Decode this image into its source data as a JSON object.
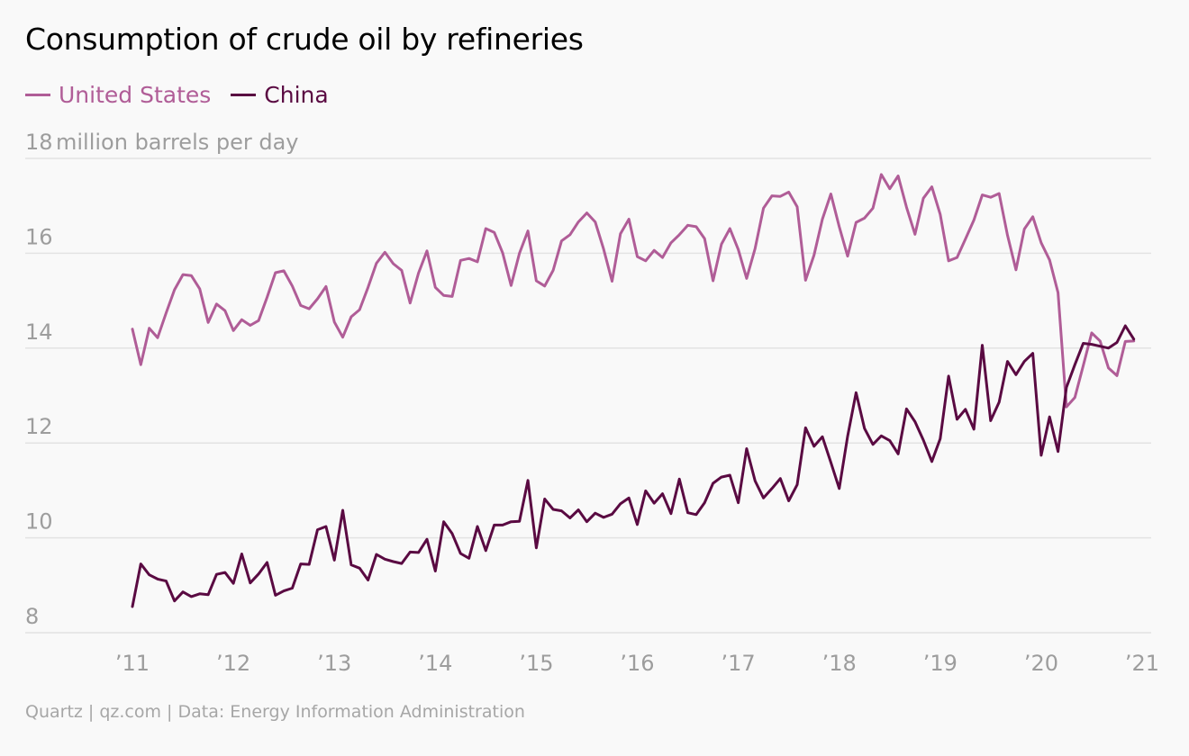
{
  "chart_data": {
    "type": "line",
    "title": "Consumption of crude oil by refineries",
    "ylabel": "million barrels per day",
    "ylim": [
      8,
      18
    ],
    "xlim": [
      2011,
      2021
    ],
    "yticks": [
      8,
      10,
      12,
      14,
      16,
      18
    ],
    "ytick_labels": [
      "8",
      "10",
      "12",
      "14",
      "16",
      "18"
    ],
    "xticks": [
      2011,
      2012,
      2013,
      2014,
      2015,
      2016,
      2017,
      2018,
      2019,
      2020,
      2021
    ],
    "xtick_labels": [
      "’11",
      "’12",
      "’13",
      "’14",
      "’15",
      "’16",
      "’17",
      "’18",
      "’19",
      "’20",
      "’21"
    ],
    "grid": true,
    "legend_position": "top-left",
    "series": [
      {
        "name": "United States",
        "color": "#b05d97",
        "values": [
          14.4,
          13.65,
          14.42,
          14.22,
          14.74,
          15.23,
          15.55,
          15.53,
          15.25,
          14.54,
          14.93,
          14.79,
          14.37,
          14.6,
          14.48,
          14.58,
          15.07,
          15.59,
          15.63,
          15.31,
          14.9,
          14.83,
          15.04,
          15.3,
          14.55,
          14.23,
          14.66,
          14.81,
          15.28,
          15.79,
          16.02,
          15.78,
          15.64,
          14.95,
          15.58,
          16.05,
          15.28,
          15.11,
          15.09,
          15.85,
          15.89,
          15.82,
          16.52,
          16.44,
          16.01,
          15.32,
          16.0,
          16.47,
          15.42,
          15.31,
          15.64,
          16.26,
          16.39,
          16.66,
          16.85,
          16.66,
          16.09,
          15.41,
          16.41,
          16.72,
          15.93,
          15.84,
          16.06,
          15.91,
          16.22,
          16.39,
          16.59,
          16.56,
          16.31,
          15.42,
          16.19,
          16.52,
          16.08,
          15.47,
          16.1,
          16.95,
          17.21,
          17.2,
          17.29,
          16.98,
          15.43,
          15.96,
          16.72,
          17.25,
          16.56,
          15.94,
          16.65,
          16.74,
          16.95,
          17.66,
          17.36,
          17.63,
          16.97,
          16.4,
          17.16,
          17.4,
          16.82,
          15.84,
          15.91,
          16.3,
          16.7,
          17.23,
          17.18,
          17.26,
          16.38,
          15.65,
          16.51,
          16.77,
          16.22,
          15.86,
          15.17,
          12.76,
          12.96,
          13.63,
          14.32,
          14.15,
          13.58,
          13.42,
          14.14,
          14.15
        ]
      },
      {
        "name": "China",
        "color": "#5a0a42",
        "values": [
          8.55,
          9.45,
          9.22,
          9.13,
          9.09,
          8.67,
          8.86,
          8.76,
          8.82,
          8.8,
          9.23,
          9.27,
          9.04,
          9.66,
          9.05,
          9.24,
          9.48,
          8.79,
          8.88,
          8.94,
          9.45,
          9.44,
          10.17,
          10.24,
          9.53,
          10.58,
          9.43,
          9.36,
          9.11,
          9.65,
          9.55,
          9.5,
          9.46,
          9.7,
          9.69,
          9.97,
          9.3,
          10.34,
          10.09,
          9.67,
          9.57,
          10.24,
          9.73,
          10.27,
          10.27,
          10.34,
          10.35,
          11.21,
          9.79,
          10.82,
          10.6,
          10.57,
          10.42,
          10.59,
          10.34,
          10.52,
          10.43,
          10.5,
          10.72,
          10.84,
          10.28,
          10.99,
          10.73,
          10.93,
          10.51,
          11.24,
          10.53,
          10.49,
          10.74,
          11.15,
          11.28,
          11.32,
          10.74,
          11.88,
          11.2,
          10.84,
          11.04,
          11.25,
          10.78,
          11.12,
          12.32,
          11.93,
          12.13,
          11.59,
          11.04,
          12.14,
          13.06,
          12.31,
          11.97,
          12.15,
          12.05,
          11.77,
          12.72,
          12.45,
          12.06,
          11.61,
          12.09,
          13.41,
          12.5,
          12.71,
          12.29,
          14.06,
          12.47,
          12.86,
          13.72,
          13.44,
          13.72,
          13.89,
          11.74,
          12.55,
          11.82,
          13.17,
          13.65,
          14.1,
          14.08,
          14.04,
          14.0,
          14.12,
          14.47,
          14.19
        ]
      }
    ]
  },
  "footer": {
    "source": "Quartz | qz.com | Data: Energy Information Administration"
  }
}
